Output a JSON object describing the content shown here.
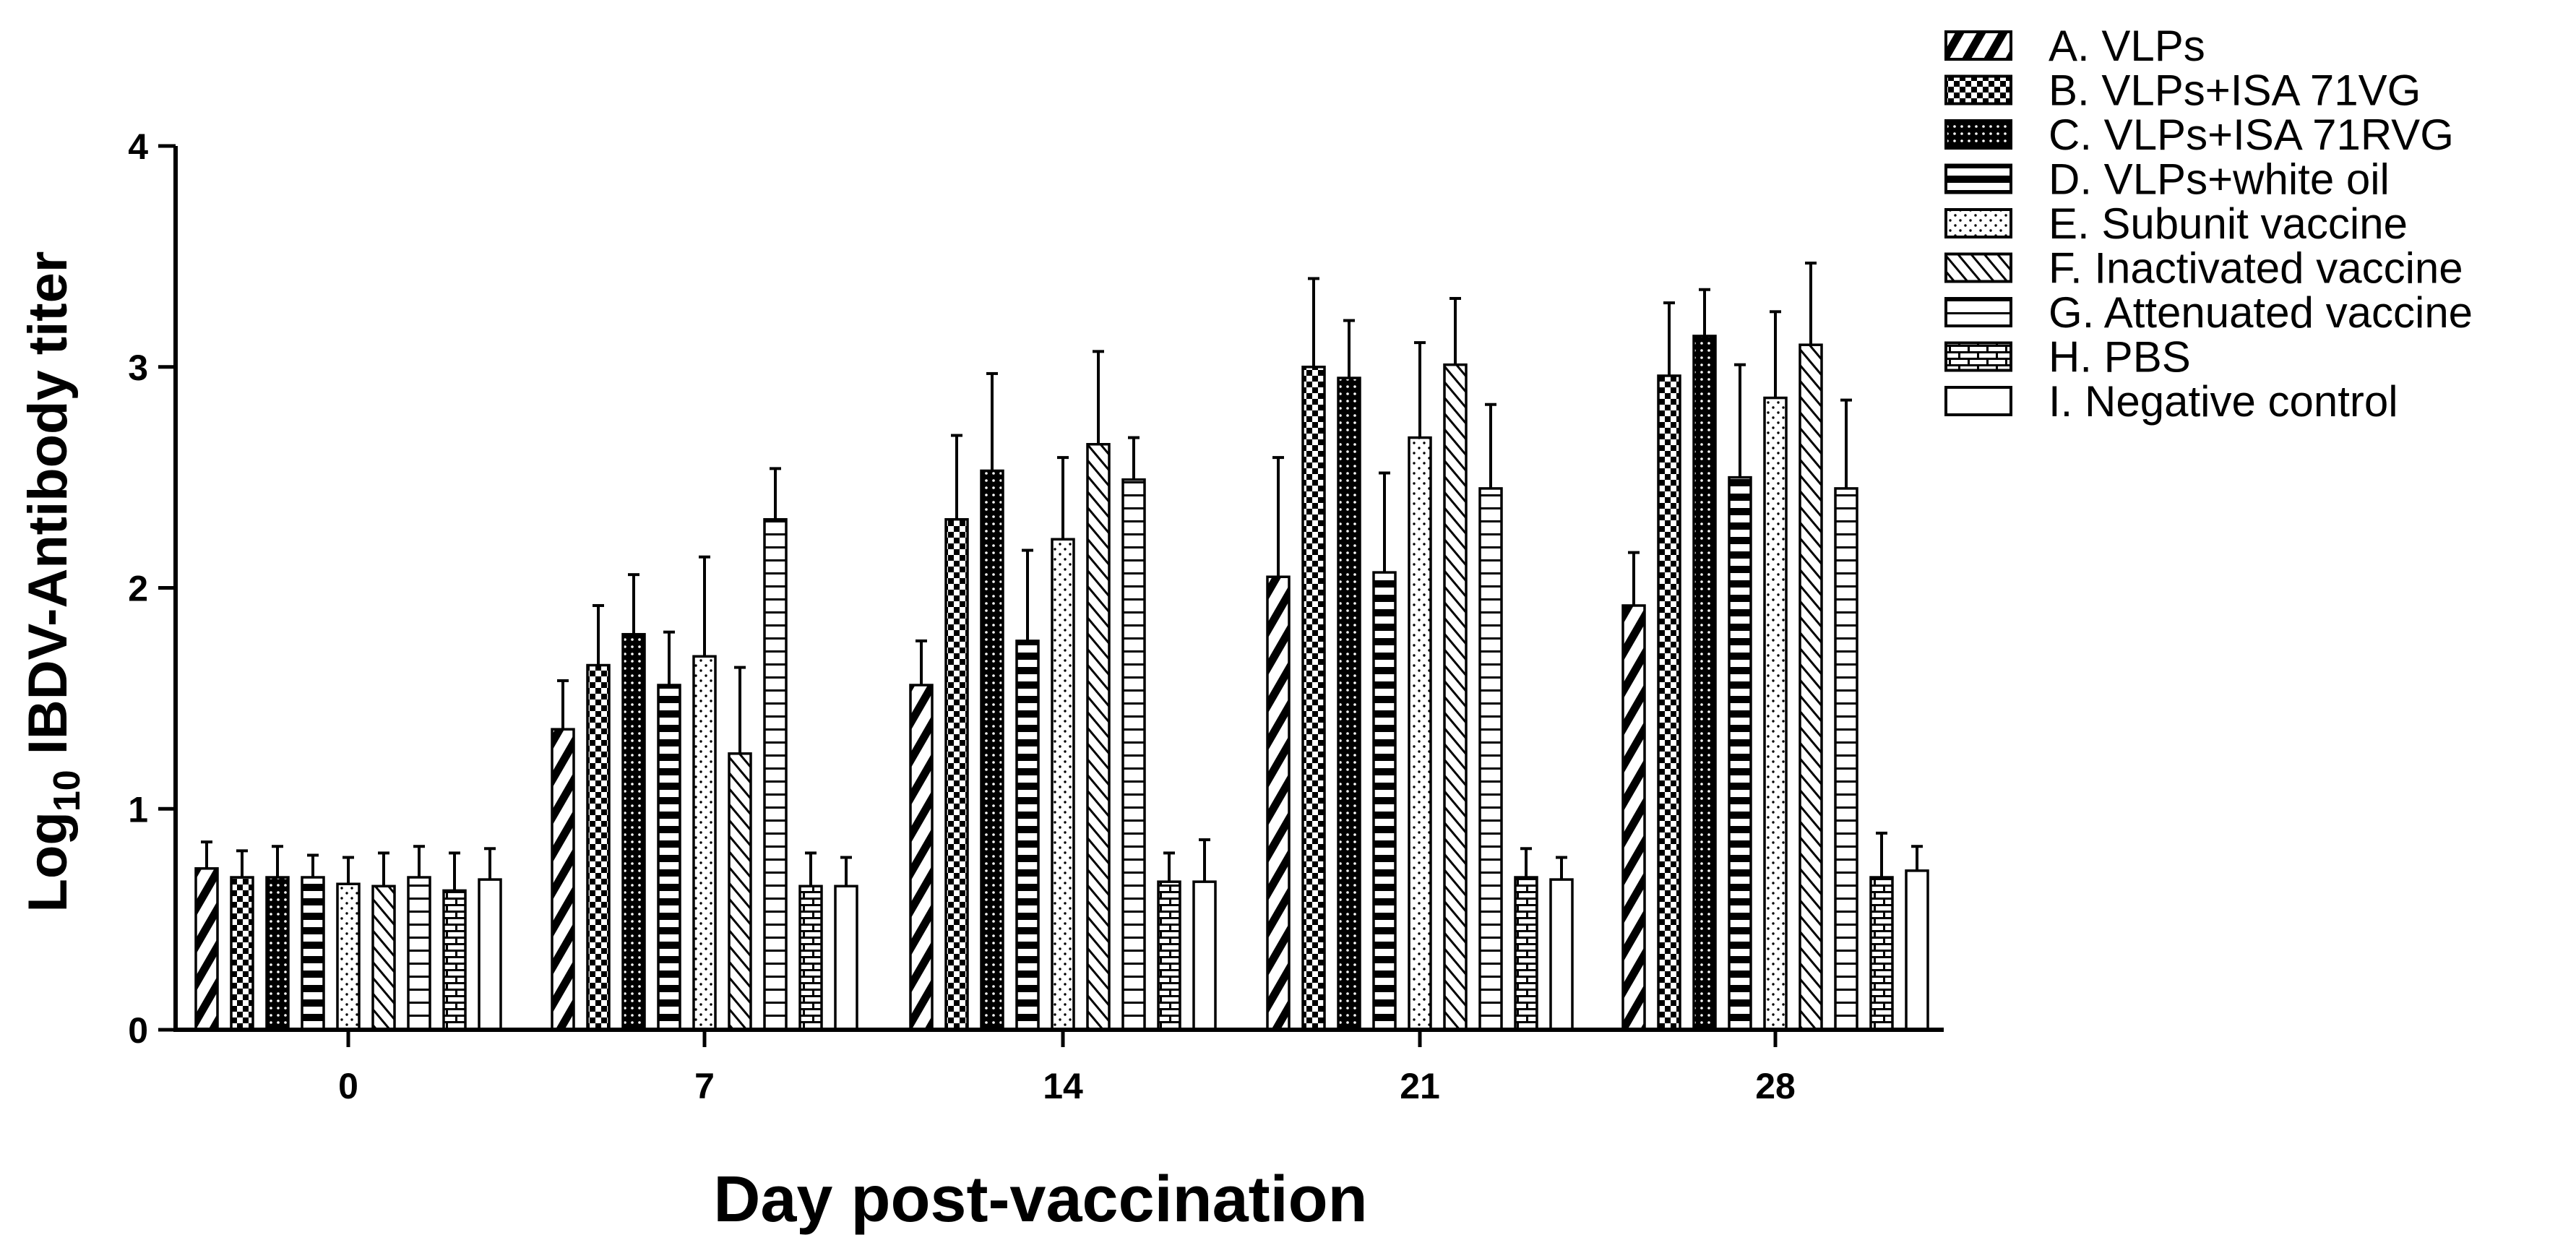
{
  "chart_data": {
    "type": "bar",
    "xlabel": "Day post-vaccination",
    "ylabel": {
      "prefix": "Log",
      "subscript": "10",
      "suffix": " IBDV-Antibody titer"
    },
    "categories": [
      "0",
      "7",
      "14",
      "21",
      "28"
    ],
    "ylim": [
      0,
      4
    ],
    "yticks": [
      0,
      1,
      2,
      3,
      4
    ],
    "grid": false,
    "legend_position": "top-right (outside plot)",
    "series": [
      {
        "name": "A. VLPs",
        "pattern": "diag-right-thick",
        "values": [
          0.73,
          1.36,
          1.56,
          2.05,
          1.92
        ],
        "errors": [
          0.12,
          0.22,
          0.2,
          0.54,
          0.24
        ]
      },
      {
        "name": "B. VLPs+ISA 71VG",
        "pattern": "checker",
        "values": [
          0.69,
          1.65,
          2.31,
          3.0,
          2.96
        ],
        "errors": [
          0.12,
          0.27,
          0.38,
          0.4,
          0.33
        ]
      },
      {
        "name": "C. VLPs+ISA 71RVG",
        "pattern": "dense-dots",
        "values": [
          0.69,
          1.79,
          2.53,
          2.95,
          3.14
        ],
        "errors": [
          0.14,
          0.27,
          0.44,
          0.26,
          0.21
        ]
      },
      {
        "name": "D. VLPs+white oil",
        "pattern": "horizontal-thick",
        "values": [
          0.69,
          1.56,
          1.76,
          2.07,
          2.5
        ],
        "errors": [
          0.1,
          0.24,
          0.41,
          0.45,
          0.51
        ]
      },
      {
        "name": "E. Subunit vaccine",
        "pattern": "sparse-dots",
        "values": [
          0.66,
          1.69,
          2.22,
          2.68,
          2.86
        ],
        "errors": [
          0.12,
          0.45,
          0.37,
          0.43,
          0.39
        ]
      },
      {
        "name": "F. Inactivated vaccine",
        "pattern": "diag-left-thin",
        "values": [
          0.65,
          1.25,
          2.65,
          3.01,
          3.1
        ],
        "errors": [
          0.15,
          0.39,
          0.42,
          0.3,
          0.37
        ]
      },
      {
        "name": "G. Attenuated vaccine",
        "pattern": "horizontal-thin",
        "values": [
          0.69,
          2.31,
          2.49,
          2.45,
          2.45
        ],
        "errors": [
          0.14,
          0.23,
          0.19,
          0.38,
          0.4
        ]
      },
      {
        "name": "H. PBS",
        "pattern": "brick",
        "values": [
          0.63,
          0.65,
          0.67,
          0.69,
          0.69
        ],
        "errors": [
          0.17,
          0.15,
          0.13,
          0.13,
          0.2
        ]
      },
      {
        "name": "I. Negative control",
        "pattern": "empty",
        "values": [
          0.68,
          0.65,
          0.67,
          0.68,
          0.72
        ],
        "errors": [
          0.14,
          0.13,
          0.19,
          0.1,
          0.11
        ]
      }
    ]
  }
}
